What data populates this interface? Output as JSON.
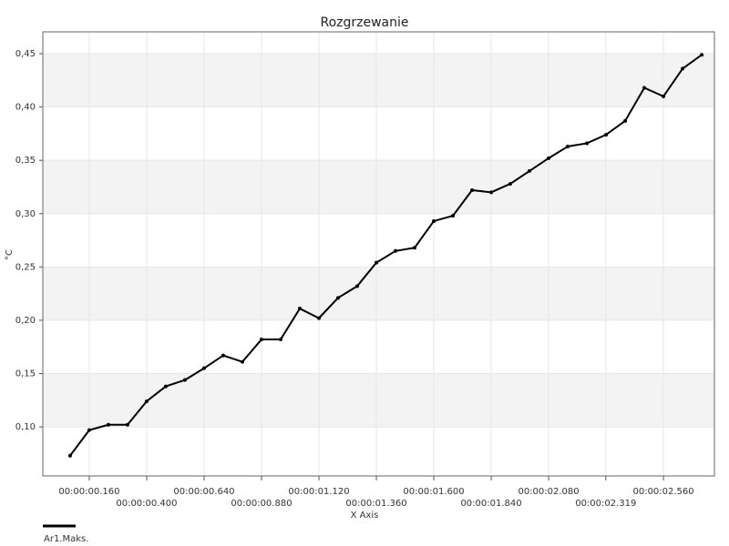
{
  "chart_data": {
    "type": "line",
    "title": "Rozgrzewanie",
    "x_label": "X Axis",
    "y_label": "°C",
    "x": [
      0.08,
      0.16,
      0.24,
      0.32,
      0.4,
      0.48,
      0.56,
      0.64,
      0.72,
      0.8,
      0.88,
      0.96,
      1.04,
      1.12,
      1.2,
      1.28,
      1.36,
      1.44,
      1.52,
      1.6,
      1.68,
      1.76,
      1.84,
      1.92,
      2.0,
      2.08,
      2.16,
      2.24,
      2.32,
      2.4,
      2.48,
      2.56,
      2.64,
      2.72
    ],
    "series": [
      {
        "name": "Ar1.Maks.",
        "color": "#000000",
        "values": [
          0.073,
          0.097,
          0.102,
          0.102,
          0.124,
          0.138,
          0.144,
          0.155,
          0.167,
          0.161,
          0.182,
          0.182,
          0.211,
          0.202,
          0.221,
          0.232,
          0.254,
          0.265,
          0.268,
          0.293,
          0.298,
          0.322,
          0.32,
          0.328,
          0.34,
          0.352,
          0.363,
          0.366,
          0.374,
          0.387,
          0.418,
          0.41,
          0.436,
          0.449
        ]
      }
    ],
    "xlim": [
      -0.034,
      2.773
    ],
    "ylim": [
      0.054,
      0.4705
    ],
    "xticks": [
      {
        "value": 0.16,
        "label": "00:00:00.160"
      },
      {
        "value": 0.4,
        "label": "00:00:00.400"
      },
      {
        "value": 0.64,
        "label": "00:00:00.640"
      },
      {
        "value": 0.88,
        "label": "00:00:00.880"
      },
      {
        "value": 1.12,
        "label": "00:00:01.120"
      },
      {
        "value": 1.36,
        "label": "00:00:01.360"
      },
      {
        "value": 1.6,
        "label": "00:00:01.600"
      },
      {
        "value": 1.84,
        "label": "00:00:01.840"
      },
      {
        "value": 2.08,
        "label": "00:00:02.080"
      },
      {
        "value": 2.319,
        "label": "00:00:02.319"
      },
      {
        "value": 2.56,
        "label": "00:00:02.560"
      }
    ],
    "yticks": [
      {
        "value": 0.1,
        "label": "0,10"
      },
      {
        "value": 0.15,
        "label": "0,15"
      },
      {
        "value": 0.2,
        "label": "0,20"
      },
      {
        "value": 0.25,
        "label": "0,25"
      },
      {
        "value": 0.3,
        "label": "0,30"
      },
      {
        "value": 0.35,
        "label": "0,35"
      },
      {
        "value": 0.4,
        "label": "0,40"
      },
      {
        "value": 0.45,
        "label": "0,45"
      }
    ],
    "grid": true,
    "legend": "bottom-left"
  }
}
